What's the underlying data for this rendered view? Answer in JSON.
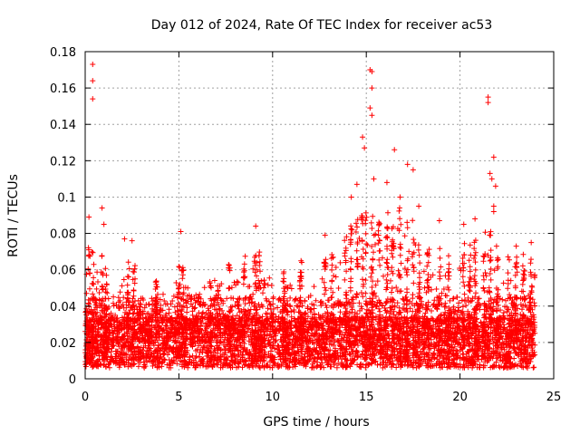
{
  "chart_data": {
    "type": "scatter",
    "title": "Day 012 of 2024, Rate Of TEC Index for receiver ac53",
    "xlabel": "GPS time / hours",
    "ylabel": "ROTI / TECUs",
    "xlim": [
      0,
      25
    ],
    "ylim": [
      0,
      0.18
    ],
    "xticks": [
      0,
      5,
      10,
      15,
      20,
      25
    ],
    "xtick_labels": [
      "0",
      "5",
      "10",
      "15",
      "20",
      "25"
    ],
    "yticks": [
      0,
      0.02,
      0.04,
      0.06,
      0.08,
      0.1,
      0.12,
      0.14,
      0.16,
      0.18
    ],
    "ytick_labels": [
      "0",
      "0.02",
      "0.04",
      "0.06",
      "0.08",
      "0.1",
      "0.12",
      "0.14",
      "0.16",
      "0.18"
    ],
    "grid": true,
    "marker": "+",
    "color": "#ff0000",
    "series": [
      {
        "name": "ROTI",
        "notable_points": [
          {
            "x": 0.4,
            "y": 0.173
          },
          {
            "x": 0.4,
            "y": 0.164
          },
          {
            "x": 0.4,
            "y": 0.154
          },
          {
            "x": 0.2,
            "y": 0.089
          },
          {
            "x": 0.9,
            "y": 0.094
          },
          {
            "x": 1.0,
            "y": 0.085
          },
          {
            "x": 2.1,
            "y": 0.077
          },
          {
            "x": 2.5,
            "y": 0.076
          },
          {
            "x": 5.1,
            "y": 0.081
          },
          {
            "x": 9.1,
            "y": 0.084
          },
          {
            "x": 12.8,
            "y": 0.079
          },
          {
            "x": 14.2,
            "y": 0.1
          },
          {
            "x": 14.5,
            "y": 0.107
          },
          {
            "x": 14.8,
            "y": 0.133
          },
          {
            "x": 14.9,
            "y": 0.127
          },
          {
            "x": 15.2,
            "y": 0.17
          },
          {
            "x": 15.3,
            "y": 0.169
          },
          {
            "x": 15.3,
            "y": 0.16
          },
          {
            "x": 15.2,
            "y": 0.149
          },
          {
            "x": 15.3,
            "y": 0.145
          },
          {
            "x": 15.4,
            "y": 0.11
          },
          {
            "x": 16.1,
            "y": 0.108
          },
          {
            "x": 16.5,
            "y": 0.126
          },
          {
            "x": 16.8,
            "y": 0.1
          },
          {
            "x": 17.2,
            "y": 0.118
          },
          {
            "x": 17.5,
            "y": 0.115
          },
          {
            "x": 17.8,
            "y": 0.095
          },
          {
            "x": 18.9,
            "y": 0.087
          },
          {
            "x": 20.2,
            "y": 0.085
          },
          {
            "x": 20.8,
            "y": 0.088
          },
          {
            "x": 21.5,
            "y": 0.155
          },
          {
            "x": 21.5,
            "y": 0.152
          },
          {
            "x": 21.6,
            "y": 0.113
          },
          {
            "x": 21.7,
            "y": 0.11
          },
          {
            "x": 21.8,
            "y": 0.122
          },
          {
            "x": 21.9,
            "y": 0.106
          },
          {
            "x": 21.8,
            "y": 0.095
          },
          {
            "x": 21.8,
            "y": 0.092
          },
          {
            "x": 23.0,
            "y": 0.073
          },
          {
            "x": 23.8,
            "y": 0.075
          }
        ],
        "dense_band": {
          "x_range": [
            0,
            24
          ],
          "y_typical_range": [
            0.005,
            0.035
          ]
        }
      }
    ]
  }
}
